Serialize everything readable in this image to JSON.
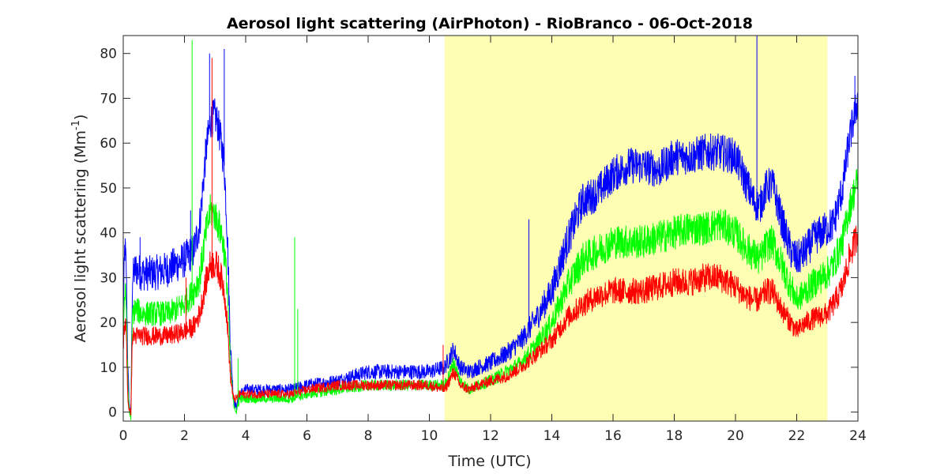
{
  "chart_data": {
    "type": "line",
    "title": "Aerosol light scattering (AirPhoton) - RioBranco - 06-Oct-2018",
    "xlabel": "Time (UTC)",
    "ylabel_main": "Aerosol light scattering (Mm",
    "ylabel_sup": "-1",
    "ylabel_close": ")",
    "xlim": [
      0,
      24
    ],
    "ylim": [
      -2,
      84
    ],
    "xticks": [
      0,
      2,
      4,
      6,
      8,
      10,
      12,
      14,
      16,
      18,
      20,
      22,
      24
    ],
    "yticks": [
      0,
      10,
      20,
      30,
      40,
      50,
      60,
      70,
      80
    ],
    "highlight": {
      "x_start": 10.5,
      "x_end": 23.0,
      "color": "#ffffb3"
    },
    "grid": false,
    "legend": "none",
    "series": [
      {
        "color": "#0000ff",
        "noise": 2.6,
        "x": [
          0,
          0.05,
          0.1,
          0.15,
          0.2,
          0.25,
          0.3,
          0.4,
          0.6,
          1.0,
          1.5,
          2.0,
          2.3,
          2.5,
          2.7,
          2.85,
          3.0,
          3.1,
          3.2,
          3.3,
          3.4,
          3.5,
          3.6,
          3.7,
          3.8,
          4.0,
          4.5,
          5.0,
          5.5,
          6.0,
          7.0,
          8.0,
          9.0,
          10.0,
          10.5,
          10.8,
          11.0,
          11.3,
          11.6,
          12.0,
          12.5,
          13.0,
          13.5,
          14.0,
          14.5,
          15.0,
          15.5,
          16.0,
          16.5,
          17.0,
          17.5,
          18.0,
          18.5,
          19.0,
          19.5,
          20.0,
          20.3,
          20.6,
          20.8,
          21.0,
          21.2,
          21.5,
          21.8,
          22.0,
          22.3,
          22.6,
          23.0,
          23.2,
          23.5,
          23.7,
          24.0
        ],
        "y": [
          22,
          37,
          32,
          10,
          1,
          0,
          30,
          32,
          31,
          31,
          32,
          34,
          36,
          42,
          58,
          65,
          66,
          64,
          60,
          55,
          40,
          15,
          3,
          1,
          4,
          5,
          5,
          5,
          5,
          6,
          7,
          9,
          9,
          9,
          10,
          14,
          10,
          9,
          10,
          11,
          13,
          16,
          21,
          27,
          38,
          47,
          49,
          53,
          55,
          55,
          54,
          57,
          57,
          58,
          58,
          57,
          52,
          47,
          46,
          50,
          51,
          43,
          36,
          34,
          36,
          39,
          41,
          42,
          50,
          60,
          70
        ]
      },
      {
        "color": "#00ff00",
        "noise": 2.4,
        "x": [
          0,
          0.05,
          0.1,
          0.15,
          0.2,
          0.25,
          0.3,
          0.4,
          0.6,
          1.0,
          1.5,
          2.0,
          2.3,
          2.5,
          2.7,
          2.85,
          3.0,
          3.1,
          3.2,
          3.3,
          3.4,
          3.5,
          3.6,
          3.7,
          3.8,
          4.0,
          4.5,
          5.0,
          5.5,
          6.0,
          7.0,
          8.0,
          9.0,
          10.0,
          10.5,
          10.8,
          11.0,
          11.3,
          11.6,
          12.0,
          12.5,
          13.0,
          13.5,
          14.0,
          14.5,
          15.0,
          15.5,
          16.0,
          16.5,
          17.0,
          17.5,
          18.0,
          18.5,
          19.0,
          19.5,
          20.0,
          20.3,
          20.6,
          20.8,
          21.0,
          21.2,
          21.5,
          21.8,
          22.0,
          22.3,
          22.6,
          23.0,
          23.2,
          23.5,
          23.7,
          24.0
        ],
        "y": [
          18,
          27,
          24,
          6,
          0,
          -1,
          22,
          23,
          22,
          22,
          22,
          24,
          27,
          30,
          40,
          45,
          44,
          42,
          40,
          36,
          28,
          10,
          2,
          0,
          3,
          3,
          3,
          3,
          3,
          4,
          5,
          6,
          6,
          6,
          6,
          11,
          7,
          5,
          6,
          7,
          9,
          11,
          15,
          20,
          28,
          34,
          36,
          38,
          38,
          38,
          39,
          40,
          41,
          41,
          42,
          40,
          37,
          35,
          34,
          37,
          38,
          33,
          28,
          25,
          27,
          29,
          31,
          33,
          38,
          45,
          52
        ]
      },
      {
        "color": "#ff0000",
        "noise": 2.2,
        "x": [
          0,
          0.05,
          0.1,
          0.15,
          0.2,
          0.25,
          0.3,
          0.4,
          0.6,
          1.0,
          1.5,
          2.0,
          2.3,
          2.5,
          2.7,
          2.85,
          3.0,
          3.1,
          3.2,
          3.3,
          3.4,
          3.5,
          3.6,
          3.7,
          3.8,
          4.0,
          4.5,
          5.0,
          5.5,
          6.0,
          7.0,
          8.0,
          9.0,
          10.0,
          10.5,
          10.8,
          11.0,
          11.3,
          11.6,
          12.0,
          12.5,
          13.0,
          13.5,
          14.0,
          14.5,
          15.0,
          15.5,
          16.0,
          16.5,
          17.0,
          17.5,
          18.0,
          18.5,
          19.0,
          19.5,
          20.0,
          20.3,
          20.6,
          20.8,
          21.0,
          21.2,
          21.5,
          21.8,
          22.0,
          22.3,
          22.6,
          23.0,
          23.2,
          23.5,
          23.7,
          24.0
        ],
        "y": [
          15,
          20,
          18,
          3,
          0,
          0,
          17,
          17,
          17,
          17,
          17,
          18,
          19,
          22,
          29,
          33,
          33,
          32,
          30,
          27,
          20,
          8,
          3,
          3,
          4,
          4,
          4,
          4,
          4,
          5,
          6,
          6,
          6,
          6,
          5,
          9,
          6,
          5,
          6,
          7,
          8,
          10,
          13,
          16,
          21,
          24,
          26,
          27,
          27,
          27,
          28,
          29,
          29,
          30,
          30,
          28,
          26,
          25,
          25,
          27,
          27,
          23,
          20,
          18,
          20,
          21,
          22,
          24,
          28,
          34,
          40
        ]
      }
    ],
    "spikes": [
      {
        "series": 0,
        "x": 0.07,
        "y": 38
      },
      {
        "series": 0,
        "x": 0.55,
        "y": 39
      },
      {
        "series": 0,
        "x": 2.2,
        "y": 45
      },
      {
        "series": 0,
        "x": 2.82,
        "y": 80
      },
      {
        "series": 0,
        "x": 3.3,
        "y": 81
      },
      {
        "series": 0,
        "x": 13.25,
        "y": 43
      },
      {
        "series": 0,
        "x": 20.7,
        "y": 84
      },
      {
        "series": 0,
        "x": 23.9,
        "y": 75
      },
      {
        "series": 1,
        "x": 2.25,
        "y": 83
      },
      {
        "series": 1,
        "x": 5.6,
        "y": 39
      },
      {
        "series": 1,
        "x": 5.7,
        "y": 23
      },
      {
        "series": 1,
        "x": 3.75,
        "y": 12
      },
      {
        "series": 2,
        "x": 2.9,
        "y": 79
      },
      {
        "series": 2,
        "x": 2.05,
        "y": 30
      },
      {
        "series": 2,
        "x": 10.45,
        "y": 15
      }
    ]
  }
}
